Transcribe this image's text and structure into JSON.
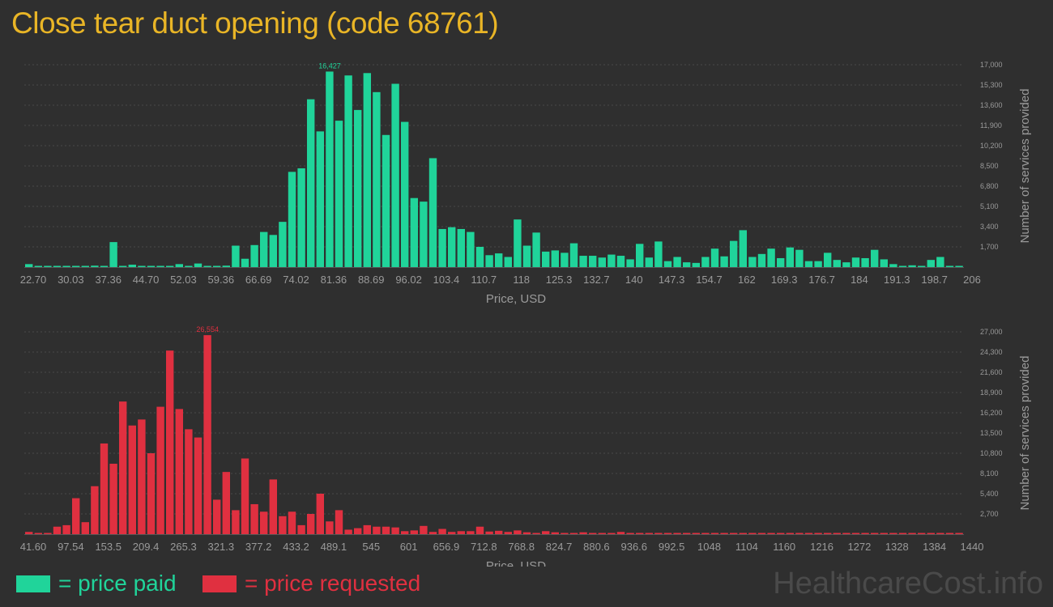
{
  "title": "Close tear duct opening (code 68761)",
  "colors": {
    "paid": "#20d49a",
    "requested": "#e03040",
    "axis_text": "#9a9a9a",
    "grid": "#4a4a4a"
  },
  "legend": {
    "paid_label": "= price paid",
    "requested_label": "= price requested"
  },
  "watermark": "HealthcareCost.info",
  "chart_data": [
    {
      "type": "bar",
      "name": "price-paid-histogram",
      "color": "#20d49a",
      "xlabel": "Price, USD",
      "ylabel": "Number of services provided",
      "ylim": [
        0,
        17000
      ],
      "y_ticks": [
        1700,
        3400,
        5100,
        6800,
        8500,
        10200,
        11900,
        13600,
        15300,
        17000
      ],
      "y_tick_labels": [
        "1,700",
        "3,400",
        "5,100",
        "6,800",
        "8,500",
        "10,200",
        "11,900",
        "13,600",
        "15,300",
        "17,000"
      ],
      "x_tick_labels": [
        "22.70",
        "30.03",
        "37.36",
        "44.70",
        "52.03",
        "59.36",
        "66.69",
        "74.02",
        "81.36",
        "88.69",
        "96.02",
        "103.4",
        "110.7",
        "118",
        "125.3",
        "132.7",
        "140",
        "147.3",
        "154.7",
        "162",
        "169.3",
        "176.7",
        "184",
        "191.3",
        "198.7",
        "206"
      ],
      "peak_label": "16,427",
      "values": [
        250,
        50,
        50,
        50,
        50,
        50,
        50,
        120,
        50,
        2100,
        50,
        200,
        50,
        80,
        80,
        50,
        250,
        50,
        300,
        50,
        80,
        120,
        1800,
        700,
        1850,
        2950,
        2700,
        3800,
        8000,
        8300,
        14100,
        11400,
        16427,
        12300,
        16100,
        13200,
        16300,
        14700,
        11100,
        15400,
        12200,
        5800,
        5500,
        9150,
        3200,
        3350,
        3200,
        2950,
        1700,
        1000,
        1150,
        850,
        4000,
        1800,
        2900,
        1300,
        1400,
        1200,
        2000,
        950,
        950,
        800,
        1050,
        950,
        650,
        1950,
        800,
        2150,
        500,
        850,
        400,
        350,
        850,
        1550,
        900,
        2200,
        3100,
        850,
        1100,
        1550,
        750,
        1650,
        1450,
        500,
        500,
        1200,
        600,
        400,
        800,
        750,
        1450,
        650,
        250,
        100,
        150,
        100,
        600,
        850,
        50,
        100
      ]
    },
    {
      "type": "bar",
      "name": "price-requested-histogram",
      "color": "#e03040",
      "xlabel": "Price, USD",
      "ylabel": "Number of services provided",
      "ylim": [
        0,
        27000
      ],
      "y_ticks": [
        2700,
        5400,
        8100,
        10800,
        13500,
        16200,
        18900,
        21600,
        24300,
        27000
      ],
      "y_tick_labels": [
        "2,700",
        "5,400",
        "8,100",
        "10,800",
        "13,500",
        "16,200",
        "18,900",
        "21,600",
        "24,300",
        "27,000"
      ],
      "x_tick_labels": [
        "41.60",
        "97.54",
        "153.5",
        "209.4",
        "265.3",
        "321.3",
        "377.2",
        "433.2",
        "489.1",
        "545",
        "601",
        "656.9",
        "712.8",
        "768.8",
        "824.7",
        "880.6",
        "936.6",
        "992.5",
        "1048",
        "1104",
        "1160",
        "1216",
        "1272",
        "1328",
        "1384",
        "1440"
      ],
      "peak_label": "26,554",
      "values": [
        300,
        100,
        100,
        1000,
        1200,
        4800,
        1600,
        6400,
        12100,
        9400,
        17700,
        14500,
        15300,
        10800,
        17000,
        24500,
        16700,
        14000,
        12900,
        26554,
        4600,
        8300,
        3200,
        10100,
        4000,
        3000,
        7300,
        2400,
        3000,
        1200,
        2700,
        5400,
        1700,
        3200,
        600,
        800,
        1200,
        1000,
        1000,
        900,
        400,
        500,
        1100,
        300,
        700,
        300,
        400,
        400,
        1000,
        350,
        450,
        300,
        500,
        250,
        100,
        400,
        250,
        150,
        100,
        250,
        100,
        150,
        100,
        300,
        100,
        100,
        150,
        100,
        100,
        100,
        100,
        100,
        100,
        100,
        100,
        100,
        100,
        100,
        100,
        100,
        100,
        100,
        100,
        100,
        100,
        100,
        100,
        100,
        100,
        100,
        100,
        100,
        100,
        100,
        100,
        100,
        100,
        100,
        100,
        100
      ]
    }
  ]
}
